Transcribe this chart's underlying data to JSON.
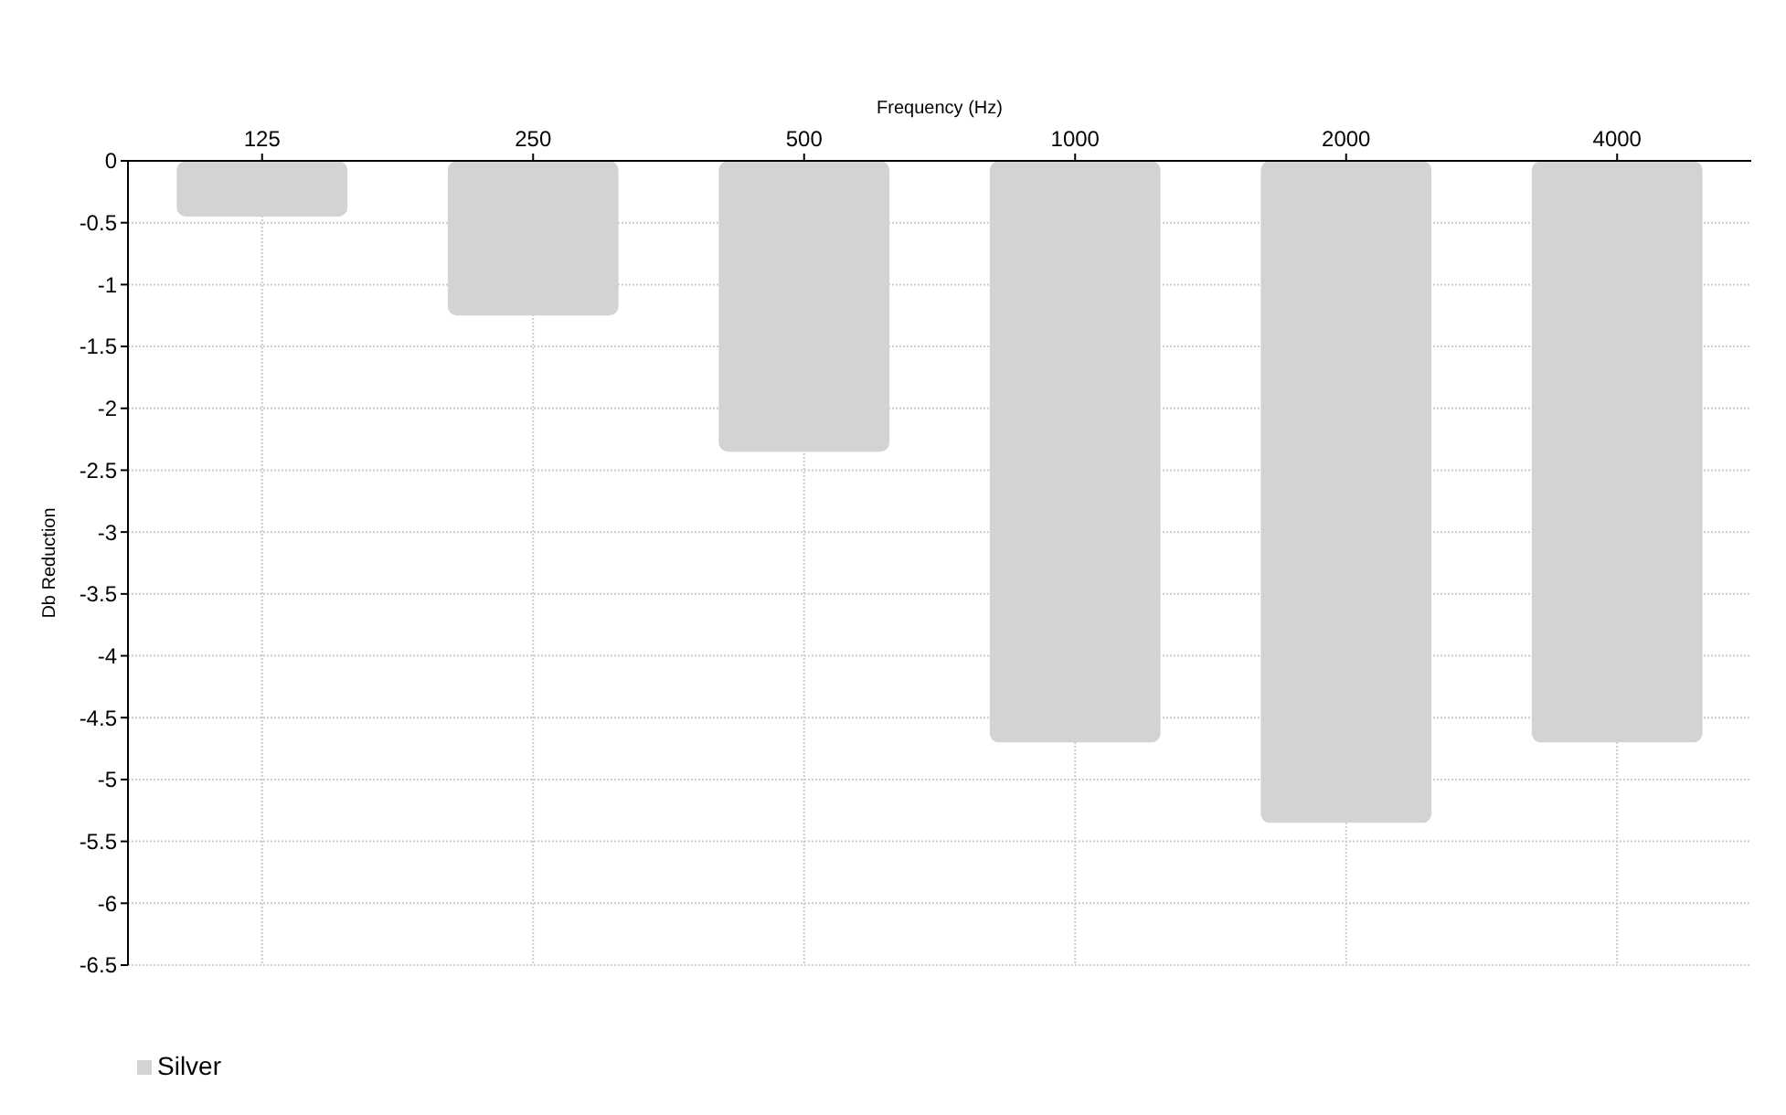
{
  "chart_data": {
    "type": "bar",
    "xlabel": "Frequency (Hz)",
    "ylabel": "Db Reduction",
    "categories": [
      "125",
      "250",
      "500",
      "1000",
      "2000",
      "4000"
    ],
    "series": [
      {
        "name": "Silver",
        "color": "#d3d3d3",
        "values": [
          -0.45,
          -1.25,
          -2.35,
          -4.7,
          -5.35,
          -4.7
        ]
      }
    ],
    "ylim": [
      -6.5,
      0
    ],
    "yticks": [
      0,
      -0.5,
      -1,
      -1.5,
      -2,
      -2.5,
      -3,
      -3.5,
      -4,
      -4.5,
      -5,
      -5.5,
      -6,
      -6.5
    ],
    "grid": true,
    "legend": "bottom left"
  }
}
